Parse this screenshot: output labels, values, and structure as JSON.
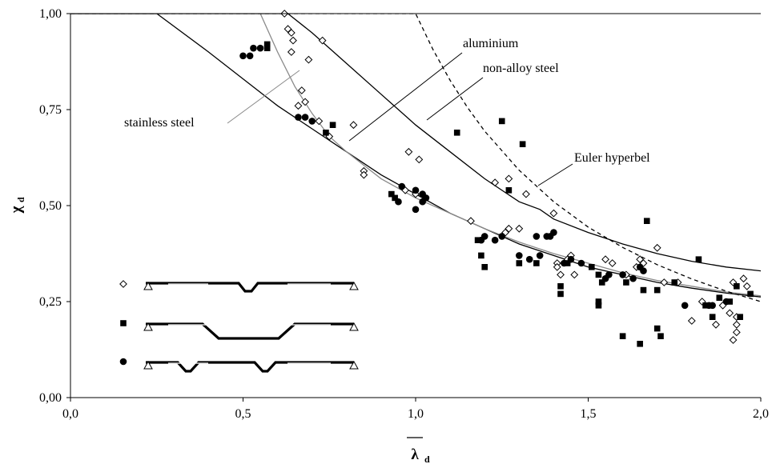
{
  "chart_data": {
    "type": "scatter",
    "title": "",
    "xlabel": "λ",
    "xlabel_sub": "d",
    "ylabel": "χ",
    "ylabel_sub": "d",
    "xlim": [
      0,
      2.0
    ],
    "ylim": [
      0,
      1.0
    ],
    "x_ticks": [
      "0,0",
      "0,5",
      "1,0",
      "1,5",
      "2,0"
    ],
    "y_ticks": [
      "0,00",
      "0,25",
      "0,50",
      "0,75",
      "1,00"
    ],
    "grid": false,
    "colors": {
      "main": "#000000",
      "stainless": "#8a8a8a"
    },
    "curves": [
      {
        "name": "aluminium",
        "x": [
          0.0,
          0.25,
          0.4,
          0.5,
          0.6,
          0.7,
          0.8,
          0.9,
          1.0,
          1.1,
          1.2,
          1.3,
          1.4,
          1.5,
          1.6,
          1.7,
          1.8,
          1.9,
          2.0
        ],
        "y": [
          1.0,
          1.0,
          0.9,
          0.83,
          0.76,
          0.7,
          0.64,
          0.58,
          0.53,
          0.48,
          0.44,
          0.4,
          0.37,
          0.34,
          0.32,
          0.3,
          0.285,
          0.272,
          0.262
        ]
      },
      {
        "name": "non-alloy steel",
        "x": [
          0.0,
          0.63,
          0.7,
          0.8,
          0.9,
          1.0,
          1.1,
          1.2,
          1.3,
          1.36,
          1.4,
          1.5,
          1.6,
          1.7,
          1.8,
          1.9,
          2.0
        ],
        "y": [
          1.0,
          1.0,
          0.95,
          0.87,
          0.79,
          0.71,
          0.64,
          0.57,
          0.51,
          0.49,
          0.465,
          0.43,
          0.4,
          0.375,
          0.355,
          0.34,
          0.33
        ]
      },
      {
        "name": "stainless steel",
        "x": [
          0.0,
          0.55,
          0.6,
          0.65,
          0.7,
          0.75,
          0.8,
          0.9,
          1.0,
          1.1,
          1.2,
          1.3,
          1.4,
          1.5,
          1.6,
          1.7,
          1.8,
          1.9,
          2.0
        ],
        "y": [
          1.0,
          1.0,
          0.9,
          0.81,
          0.74,
          0.68,
          0.64,
          0.57,
          0.52,
          0.48,
          0.44,
          0.405,
          0.375,
          0.35,
          0.325,
          0.305,
          0.29,
          0.275,
          0.265
        ]
      },
      {
        "name": "Euler hyperbel",
        "x": [
          0.0,
          1.0,
          1.05,
          1.1,
          1.15,
          1.2,
          1.3,
          1.4,
          1.5,
          1.6,
          1.7,
          1.8,
          1.9,
          2.0
        ],
        "y": [
          1.0,
          1.0,
          0.907,
          0.826,
          0.756,
          0.694,
          0.592,
          0.51,
          0.444,
          0.391,
          0.346,
          0.309,
          0.277,
          0.25
        ]
      }
    ],
    "annotations": [
      "aluminium",
      "non-alloy steel",
      "stainless steel",
      "Euler hyperbel"
    ],
    "series": [
      {
        "marker": "diamond-open",
        "points": [
          [
            0.62,
            1.0
          ],
          [
            0.63,
            0.96
          ],
          [
            0.64,
            0.95
          ],
          [
            0.645,
            0.93
          ],
          [
            0.64,
            0.9
          ],
          [
            0.73,
            0.93
          ],
          [
            0.69,
            0.88
          ],
          [
            0.66,
            0.76
          ],
          [
            0.67,
            0.8
          ],
          [
            0.68,
            0.77
          ],
          [
            0.72,
            0.72
          ],
          [
            0.75,
            0.68
          ],
          [
            0.82,
            0.71
          ],
          [
            0.85,
            0.59
          ],
          [
            0.85,
            0.58
          ],
          [
            0.98,
            0.64
          ],
          [
            1.01,
            0.62
          ],
          [
            0.97,
            0.54
          ],
          [
            1.0,
            0.53
          ],
          [
            1.16,
            0.46
          ],
          [
            1.23,
            0.56
          ],
          [
            1.26,
            0.43
          ],
          [
            1.27,
            0.57
          ],
          [
            1.27,
            0.44
          ],
          [
            1.32,
            0.53
          ],
          [
            1.3,
            0.44
          ],
          [
            1.4,
            0.48
          ],
          [
            1.41,
            0.35
          ],
          [
            1.41,
            0.34
          ],
          [
            1.42,
            0.32
          ],
          [
            1.44,
            0.36
          ],
          [
            1.45,
            0.37
          ],
          [
            1.46,
            0.32
          ],
          [
            1.55,
            0.36
          ],
          [
            1.57,
            0.35
          ],
          [
            1.61,
            0.32
          ],
          [
            1.64,
            0.34
          ],
          [
            1.65,
            0.36
          ],
          [
            1.66,
            0.35
          ],
          [
            1.7,
            0.39
          ],
          [
            1.72,
            0.3
          ],
          [
            1.76,
            0.3
          ],
          [
            1.8,
            0.2
          ],
          [
            1.83,
            0.25
          ],
          [
            1.87,
            0.19
          ],
          [
            1.89,
            0.24
          ],
          [
            1.91,
            0.22
          ],
          [
            1.92,
            0.15
          ],
          [
            1.93,
            0.17
          ],
          [
            1.93,
            0.19
          ],
          [
            1.93,
            0.21
          ],
          [
            1.92,
            0.3
          ],
          [
            1.95,
            0.31
          ],
          [
            1.96,
            0.29
          ]
        ]
      },
      {
        "marker": "square-filled",
        "points": [
          [
            0.57,
            0.91
          ],
          [
            0.57,
            0.92
          ],
          [
            0.76,
            0.71
          ],
          [
            0.74,
            0.69
          ],
          [
            0.93,
            0.53
          ],
          [
            0.94,
            0.52
          ],
          [
            1.12,
            0.69
          ],
          [
            1.25,
            0.72
          ],
          [
            1.31,
            0.66
          ],
          [
            1.27,
            0.54
          ],
          [
            1.18,
            0.41
          ],
          [
            1.19,
            0.37
          ],
          [
            1.2,
            0.34
          ],
          [
            1.35,
            0.35
          ],
          [
            1.3,
            0.35
          ],
          [
            1.42,
            0.29
          ],
          [
            1.42,
            0.27
          ],
          [
            1.44,
            0.35
          ],
          [
            1.51,
            0.34
          ],
          [
            1.53,
            0.24
          ],
          [
            1.53,
            0.25
          ],
          [
            1.53,
            0.32
          ],
          [
            1.54,
            0.3
          ],
          [
            1.6,
            0.16
          ],
          [
            1.61,
            0.3
          ],
          [
            1.65,
            0.14
          ],
          [
            1.66,
            0.28
          ],
          [
            1.67,
            0.46
          ],
          [
            1.7,
            0.28
          ],
          [
            1.7,
            0.18
          ],
          [
            1.71,
            0.16
          ],
          [
            1.75,
            0.3
          ],
          [
            1.82,
            0.36
          ],
          [
            1.84,
            0.24
          ],
          [
            1.86,
            0.21
          ],
          [
            1.88,
            0.26
          ],
          [
            1.91,
            0.25
          ],
          [
            1.93,
            0.29
          ],
          [
            1.94,
            0.21
          ],
          [
            1.97,
            0.27
          ]
        ]
      },
      {
        "marker": "circle-filled",
        "points": [
          [
            0.5,
            0.89
          ],
          [
            0.52,
            0.89
          ],
          [
            0.53,
            0.91
          ],
          [
            0.55,
            0.91
          ],
          [
            0.66,
            0.73
          ],
          [
            0.68,
            0.73
          ],
          [
            0.7,
            0.72
          ],
          [
            0.96,
            0.55
          ],
          [
            0.95,
            0.51
          ],
          [
            1.0,
            0.54
          ],
          [
            1.02,
            0.53
          ],
          [
            1.03,
            0.52
          ],
          [
            1.02,
            0.51
          ],
          [
            1.0,
            0.49
          ],
          [
            1.19,
            0.41
          ],
          [
            1.2,
            0.42
          ],
          [
            1.23,
            0.41
          ],
          [
            1.25,
            0.42
          ],
          [
            1.3,
            0.37
          ],
          [
            1.33,
            0.36
          ],
          [
            1.35,
            0.42
          ],
          [
            1.36,
            0.37
          ],
          [
            1.38,
            0.42
          ],
          [
            1.39,
            0.42
          ],
          [
            1.4,
            0.43
          ],
          [
            1.43,
            0.35
          ],
          [
            1.45,
            0.36
          ],
          [
            1.48,
            0.35
          ],
          [
            1.55,
            0.31
          ],
          [
            1.56,
            0.32
          ],
          [
            1.6,
            0.32
          ],
          [
            1.63,
            0.31
          ],
          [
            1.65,
            0.34
          ],
          [
            1.66,
            0.33
          ],
          [
            1.78,
            0.24
          ],
          [
            1.85,
            0.24
          ],
          [
            1.86,
            0.24
          ],
          [
            1.9,
            0.25
          ]
        ]
      }
    ]
  }
}
